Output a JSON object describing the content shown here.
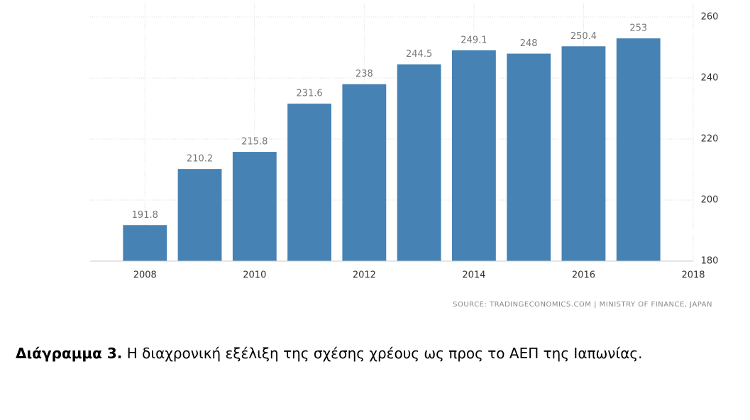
{
  "chart_data": {
    "type": "bar",
    "x": [
      2008,
      2009,
      2010,
      2011,
      2012,
      2013,
      2014,
      2015,
      2016,
      2017
    ],
    "values": [
      191.8,
      210.2,
      215.8,
      231.6,
      238,
      244.5,
      249.1,
      248,
      250.4,
      253
    ],
    "color": "#4682b4",
    "xlim": [
      2007,
      2018
    ],
    "xticks": [
      2008,
      2010,
      2012,
      2014,
      2016,
      2018
    ],
    "ylim": [
      180,
      260
    ],
    "yticks": [
      180,
      200,
      220,
      240,
      260
    ],
    "grid": true,
    "source": "SOURCE: TRADINGECONOMICS.COM | MINISTRY OF FINANCE, JAPAN",
    "caption_label": "Διάγραμμα 3.",
    "caption": "Η διαχρονική εξέλιξη της σχέσης χρέους ως προς το ΑΕΠ της Ιαπωνίας."
  }
}
